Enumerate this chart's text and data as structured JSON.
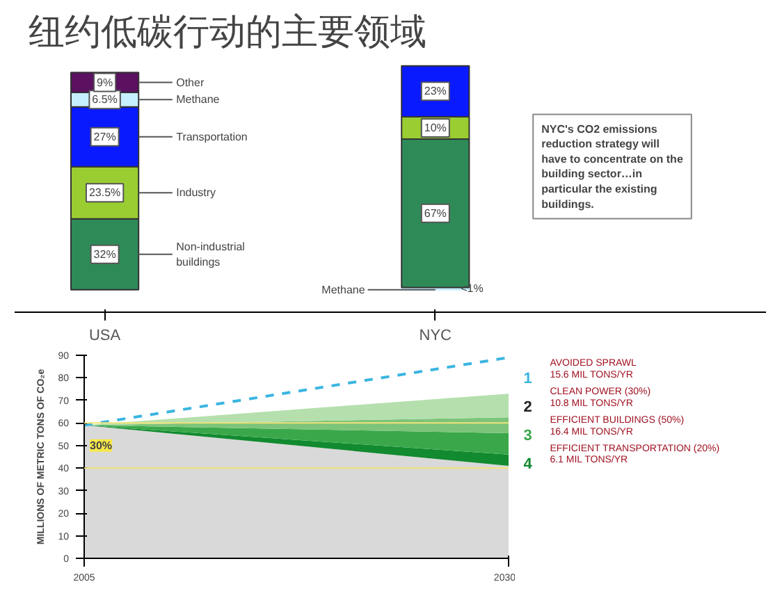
{
  "chart_data": [
    {
      "type": "bar",
      "stacked": true,
      "title": "纽约低碳行动的主要领域",
      "categories": [
        "USA",
        "NYC"
      ],
      "tick_labels": "x",
      "grid": false,
      "legend": false,
      "series": [
        {
          "color": "#c6efff",
          "values": [
            null,
            1
          ],
          "value_labels": [
            null,
            "<1%"
          ]
        },
        {
          "name": "Non-industrial buildings",
          "color": "#2e8b57",
          "values": [
            32,
            67
          ],
          "value_labels": [
            "32%",
            "67%"
          ]
        },
        {
          "name": "Industry",
          "color": "#9acd32",
          "values": [
            23.5,
            10
          ],
          "value_labels": [
            "23.5%",
            "10%"
          ]
        },
        {
          "name": "Transportation",
          "color": "#0a1aff",
          "values": [
            27,
            23
          ],
          "value_labels": [
            "27%",
            "23%"
          ]
        },
        {
          "name": "Methane",
          "color": "#c6efff",
          "values": [
            6.5,
            null
          ],
          "value_labels": [
            "6.5%",
            null
          ]
        },
        {
          "name": "Other",
          "color": "#5b1060",
          "values": [
            9,
            null
          ],
          "value_labels": [
            "9%",
            null
          ]
        }
      ],
      "annotations": [
        {
          "text": "Methane",
          "x": "NYC",
          "y": 0
        },
        "NYC's CO2 emissions reduction strategy will have to concentrate on the building sector…in particular the existing buildings."
      ]
    },
    {
      "type": "area",
      "stacked": true,
      "x": [
        2005,
        2030
      ],
      "xlim": [
        2005,
        2030
      ],
      "xticks": [
        2005,
        2030
      ],
      "ylim": [
        0,
        90
      ],
      "yticks": [
        0,
        10,
        20,
        30,
        40,
        50,
        60,
        70,
        80,
        90
      ],
      "ylabel": "MILLIONS OF METRIC TONS OF CO₂e",
      "grid": false,
      "legend": false,
      "series": [
        {
          "color": "#d9d9d9",
          "values": [
            59,
            41
          ]
        },
        {
          "color": "#128a30",
          "values": [
            0,
            5
          ]
        },
        {
          "color": "#3aa84a",
          "values": [
            0,
            9.5
          ]
        },
        {
          "color": "#7cc47a",
          "values": [
            0,
            7
          ]
        },
        {
          "color": "#b5e0ad",
          "values": [
            0,
            10.5
          ]
        },
        {
          "type": "line",
          "color": "#3bb5e0",
          "line_style": "dashed",
          "values": [
            59,
            89
          ]
        }
      ],
      "ref_lines": [
        {
          "axis": "y",
          "value": 60,
          "color": "#f2e27a"
        },
        {
          "axis": "y",
          "value": 40,
          "color": "#f2e27a"
        }
      ],
      "annotations": [
        {
          "text": "30%",
          "x": 2005,
          "y": 50
        },
        "1",
        "AVOIDED SPRAWL\n15.6 MIL TONS/YR",
        "2",
        "CLEAN POWER (30%)\n10.8 MIL TONS/YR",
        "3",
        "EFFICIENT BUILDINGS (50%)\n16.4 MIL TONS/YR",
        "4",
        "EFFICIENT TRANSPORTATION (20%)\n6.1 MIL TONS/YR"
      ]
    }
  ]
}
